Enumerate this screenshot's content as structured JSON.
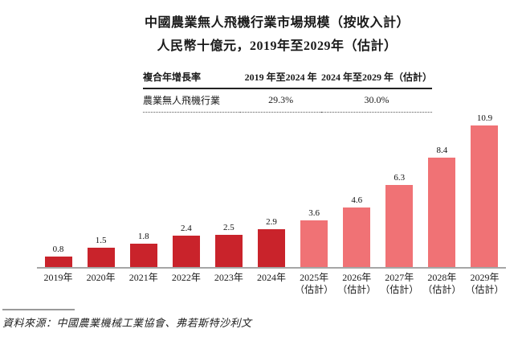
{
  "title": {
    "line1": "中國農業無人飛機行業市場規模（按收入計）",
    "line2": "人民幣十億元，2019年至2029年（估計）"
  },
  "cagr_table": {
    "header": [
      "複合年增長率",
      "2019 年至2024 年",
      "2024 年至2029 年（估計）"
    ],
    "rows": [
      [
        "農業無人飛機行業",
        "29.3%",
        "30.0%"
      ]
    ]
  },
  "chart_data": {
    "type": "bar",
    "title": "中國農業無人飛機行業市場規模（按收入計）",
    "subtitle": "人民幣十億元，2019年至2029年（估計）",
    "ylabel": "人民幣十億元",
    "xlabel": "",
    "categories": [
      {
        "year": "2019年",
        "note": ""
      },
      {
        "year": "2020年",
        "note": ""
      },
      {
        "year": "2021年",
        "note": ""
      },
      {
        "year": "2022年",
        "note": ""
      },
      {
        "year": "2023年",
        "note": ""
      },
      {
        "year": "2024年",
        "note": ""
      },
      {
        "year": "2025年",
        "note": "（估計）"
      },
      {
        "year": "2026年",
        "note": "（估計）"
      },
      {
        "year": "2027年",
        "note": "（估計）"
      },
      {
        "year": "2028年",
        "note": "（估計）"
      },
      {
        "year": "2029年",
        "note": "（估計）"
      }
    ],
    "values": [
      0.8,
      1.5,
      1.8,
      2.4,
      2.5,
      2.9,
      3.6,
      4.6,
      6.3,
      8.4,
      10.9
    ],
    "estimate_start_index": 6,
    "ylim": [
      0,
      10.9
    ],
    "grid": false,
    "legend": "none",
    "data_labels": true
  },
  "colors": {
    "bar_actual": "#c9232b",
    "bar_estimate": "#f07275",
    "axis_line": "#a6a6a6",
    "text": "#1a1a1a"
  },
  "source": {
    "text": "資料來源：中國農業機械工業協會、弗若斯特沙利文"
  }
}
